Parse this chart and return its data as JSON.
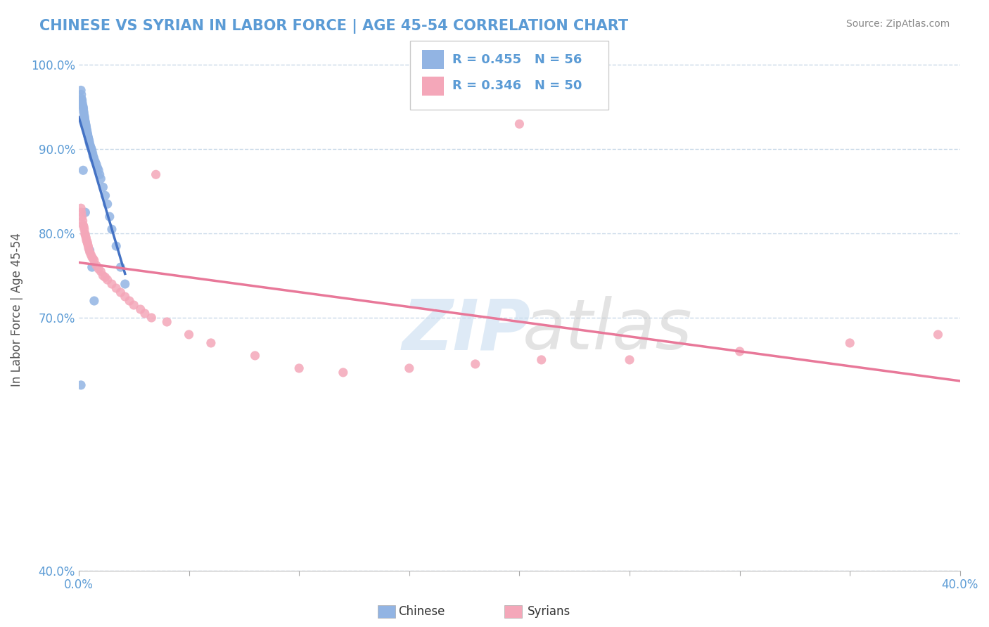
{
  "title": "CHINESE VS SYRIAN IN LABOR FORCE | AGE 45-54 CORRELATION CHART",
  "source": "Source: ZipAtlas.com",
  "ylabel": "In Labor Force | Age 45-54",
  "xlim": [
    0.0,
    0.4
  ],
  "ylim": [
    0.4,
    1.02
  ],
  "xticks": [
    0.0,
    0.05,
    0.1,
    0.15,
    0.2,
    0.25,
    0.3,
    0.35,
    0.4
  ],
  "yticks": [
    0.4,
    0.7,
    0.8,
    0.9,
    1.0
  ],
  "color_chinese": "#92b4e3",
  "color_syrians": "#f4a7b9",
  "color_chinese_line": "#4472c4",
  "color_syrians_line": "#e87899",
  "background_color": "#ffffff",
  "grid_color": "#c8d8e8",
  "chinese_x": [
    0.001,
    0.0012,
    0.0013,
    0.0015,
    0.0016,
    0.0018,
    0.002,
    0.0021,
    0.0022,
    0.0023,
    0.0025,
    0.0026,
    0.0027,
    0.0028,
    0.003,
    0.0031,
    0.0033,
    0.0034,
    0.0035,
    0.0037,
    0.0038,
    0.004,
    0.0041,
    0.0043,
    0.0045,
    0.0047,
    0.0048,
    0.005,
    0.0052,
    0.0055,
    0.0058,
    0.006,
    0.0063,
    0.0065,
    0.0068,
    0.007,
    0.0075,
    0.008,
    0.0085,
    0.009,
    0.0095,
    0.01,
    0.011,
    0.012,
    0.013,
    0.014,
    0.015,
    0.017,
    0.019,
    0.021,
    0.002,
    0.003,
    0.005,
    0.007,
    0.001,
    0.006
  ],
  "chinese_y": [
    0.97,
    0.965,
    0.96,
    0.958,
    0.955,
    0.952,
    0.95,
    0.948,
    0.945,
    0.943,
    0.94,
    0.938,
    0.936,
    0.934,
    0.932,
    0.93,
    0.928,
    0.926,
    0.924,
    0.922,
    0.92,
    0.918,
    0.916,
    0.914,
    0.912,
    0.91,
    0.908,
    0.906,
    0.904,
    0.902,
    0.9,
    0.898,
    0.895,
    0.892,
    0.89,
    0.888,
    0.885,
    0.882,
    0.878,
    0.875,
    0.87,
    0.865,
    0.855,
    0.845,
    0.835,
    0.82,
    0.805,
    0.785,
    0.76,
    0.74,
    0.875,
    0.825,
    0.78,
    0.72,
    0.62,
    0.76
  ],
  "syrian_x": [
    0.001,
    0.0012,
    0.0015,
    0.0018,
    0.002,
    0.0023,
    0.0025,
    0.0028,
    0.003,
    0.0033,
    0.0035,
    0.0038,
    0.004,
    0.0043,
    0.0045,
    0.005,
    0.0055,
    0.006,
    0.0065,
    0.007,
    0.008,
    0.009,
    0.01,
    0.011,
    0.012,
    0.013,
    0.015,
    0.017,
    0.019,
    0.021,
    0.023,
    0.025,
    0.028,
    0.03,
    0.033,
    0.04,
    0.05,
    0.06,
    0.08,
    0.1,
    0.12,
    0.15,
    0.18,
    0.21,
    0.25,
    0.3,
    0.35,
    0.39,
    0.2,
    0.035
  ],
  "syrian_y": [
    0.83,
    0.825,
    0.82,
    0.815,
    0.81,
    0.808,
    0.805,
    0.8,
    0.798,
    0.795,
    0.792,
    0.79,
    0.788,
    0.785,
    0.782,
    0.778,
    0.775,
    0.772,
    0.77,
    0.768,
    0.762,
    0.758,
    0.755,
    0.75,
    0.748,
    0.745,
    0.74,
    0.735,
    0.73,
    0.725,
    0.72,
    0.715,
    0.71,
    0.705,
    0.7,
    0.695,
    0.68,
    0.67,
    0.655,
    0.64,
    0.635,
    0.64,
    0.645,
    0.65,
    0.65,
    0.66,
    0.67,
    0.68,
    0.93,
    0.87
  ]
}
